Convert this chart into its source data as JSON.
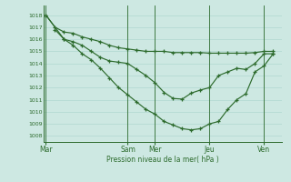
{
  "background_color": "#cde8e2",
  "grid_color": "#b0d8d0",
  "line_color": "#2d6b2d",
  "ylim": [
    1007.5,
    1018.8
  ],
  "xlim": [
    -0.5,
    52
  ],
  "yticks": [
    1008,
    1009,
    1010,
    1011,
    1012,
    1013,
    1014,
    1015,
    1016,
    1017,
    1018
  ],
  "xlabel": "Pression niveau de la mer( hPa )",
  "day_labels": [
    "Mar",
    "Sam",
    "Mer",
    "Jeu",
    "Ven"
  ],
  "day_x": [
    0,
    18,
    24,
    36,
    48
  ],
  "s1_x": [
    0,
    2,
    4,
    6,
    8,
    10,
    12,
    14,
    16,
    18,
    20,
    22,
    24,
    26,
    28,
    30,
    32,
    34,
    36,
    38,
    40,
    42,
    44,
    46,
    48,
    50
  ],
  "s1_y": [
    1018,
    1017,
    1016.6,
    1016.5,
    1016.2,
    1016.0,
    1015.8,
    1015.5,
    1015.3,
    1015.2,
    1015.1,
    1015.0,
    1015.0,
    1015.0,
    1014.9,
    1014.9,
    1014.9,
    1014.9,
    1014.85,
    1014.85,
    1014.85,
    1014.85,
    1014.85,
    1014.9,
    1015.0,
    1015.0
  ],
  "s2_x": [
    0,
    4,
    6,
    8,
    10,
    12,
    14,
    16,
    18,
    20,
    22,
    24,
    26,
    28,
    30,
    32,
    34,
    36,
    38,
    40,
    42,
    44,
    46,
    48,
    50
  ],
  "s2_y": [
    1018,
    1016.0,
    1015.5,
    1014.8,
    1014.3,
    1013.6,
    1012.8,
    1012.0,
    1011.4,
    1010.8,
    1010.2,
    1009.8,
    1009.2,
    1008.9,
    1008.6,
    1008.5,
    1008.6,
    1009.0,
    1009.2,
    1010.2,
    1011.0,
    1011.5,
    1013.3,
    1013.8,
    1014.8
  ],
  "s3_x": [
    2,
    4,
    6,
    8,
    10,
    12,
    14,
    16,
    18,
    20,
    22,
    24,
    26,
    28,
    30,
    32,
    34,
    36,
    38,
    40,
    42,
    44,
    46,
    48,
    50
  ],
  "s3_y": [
    1016.8,
    1016.0,
    1015.8,
    1015.5,
    1015.0,
    1014.5,
    1014.2,
    1014.1,
    1014.0,
    1013.5,
    1013.0,
    1012.4,
    1011.6,
    1011.1,
    1011.05,
    1011.55,
    1011.8,
    1012.0,
    1013.0,
    1013.3,
    1013.6,
    1013.5,
    1014.0,
    1014.8,
    1014.8
  ]
}
